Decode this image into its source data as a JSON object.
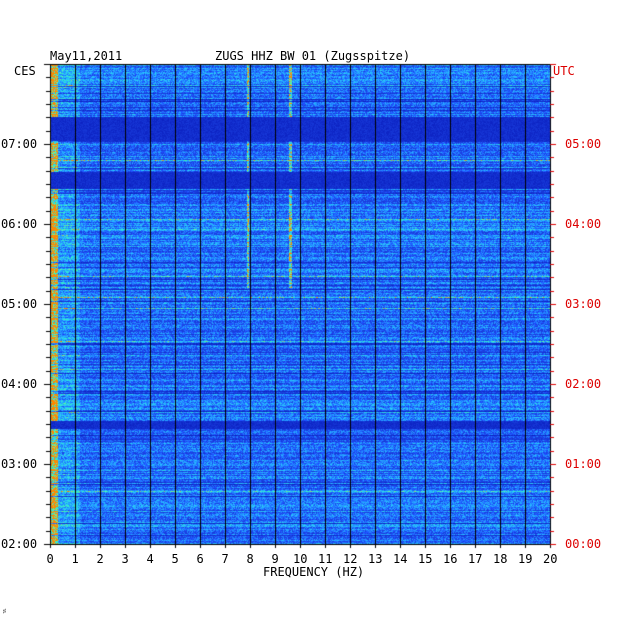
{
  "chart_data": {
    "type": "heatmap",
    "date_label": "May11,2011",
    "title": "ZUGS HHZ BW 01 (Zugsspitze)",
    "left_timezone": "CES",
    "right_timezone": "UTC",
    "xlabel": "FREQUENCY (HZ)",
    "xlim": [
      0,
      20
    ],
    "x_ticks": [
      "0",
      "1",
      "2",
      "3",
      "4",
      "5",
      "6",
      "7",
      "8",
      "9",
      "10",
      "11",
      "12",
      "13",
      "14",
      "15",
      "16",
      "17",
      "18",
      "19",
      "20"
    ],
    "y_ticks_left": [
      "02:00",
      "03:00",
      "04:00",
      "05:00",
      "06:00",
      "07:00"
    ],
    "y_ticks_right": [
      "00:00",
      "01:00",
      "02:00",
      "03:00",
      "04:00",
      "05:00"
    ],
    "ylim_hours_utc": [
      0,
      6
    ],
    "grid": true,
    "colors": {
      "background": "#0022cc",
      "low": "#1a2ecc",
      "mid": "#2a8cff",
      "high": "#00ffff",
      "peak": "#ff6600",
      "grid": "#000000",
      "utc_text": "#dd0000"
    },
    "notable_lines_hz": [
      7.9,
      9.6
    ],
    "quiet_bands_utc_hours": [
      [
        5.05,
        5.35
      ],
      [
        4.45,
        4.65
      ],
      [
        1.45,
        1.55
      ]
    ]
  },
  "footer_mark": "♯"
}
